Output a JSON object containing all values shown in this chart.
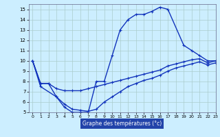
{
  "xlabel": "Graphe des températures (°c)",
  "bg_color": "#cceeff",
  "grid_color": "#aacccc",
  "line_color": "#1133bb",
  "xlim": [
    -0.5,
    23
  ],
  "ylim": [
    5,
    15.5
  ],
  "yticks": [
    5,
    6,
    7,
    8,
    9,
    10,
    11,
    12,
    13,
    14,
    15
  ],
  "xticks": [
    0,
    1,
    2,
    3,
    4,
    5,
    6,
    7,
    8,
    9,
    10,
    11,
    12,
    13,
    14,
    15,
    16,
    17,
    18,
    19,
    20,
    21,
    22,
    23
  ],
  "xlabel_bg": "#2244aa",
  "line1_x": [
    0,
    1,
    3,
    4,
    5,
    6,
    7,
    8,
    9,
    10,
    11,
    12,
    13,
    14,
    15,
    16,
    17,
    19,
    20,
    21,
    22,
    23
  ],
  "line1_y": [
    10.0,
    7.5,
    6.5,
    5.5,
    5.0,
    5.0,
    5.0,
    8.0,
    8.0,
    10.5,
    13.0,
    14.0,
    14.5,
    14.5,
    14.8,
    15.2,
    15.0,
    11.5,
    11.0,
    10.5,
    10.0,
    10.0
  ],
  "line2_x": [
    0,
    1,
    2,
    3,
    4,
    5,
    6,
    7,
    8,
    9,
    10,
    11,
    12,
    13,
    14,
    15,
    16,
    17,
    18,
    19,
    20,
    21,
    22,
    23
  ],
  "line2_y": [
    10.0,
    7.8,
    7.8,
    7.3,
    7.1,
    7.1,
    7.1,
    7.3,
    7.5,
    7.7,
    7.9,
    8.1,
    8.3,
    8.5,
    8.7,
    8.9,
    9.1,
    9.5,
    9.7,
    9.9,
    10.1,
    10.2,
    9.8,
    10.0
  ],
  "line3_x": [
    0,
    1,
    2,
    3,
    4,
    5,
    6,
    7,
    8,
    9,
    10,
    11,
    12,
    13,
    14,
    15,
    16,
    17,
    18,
    19,
    20,
    21,
    22,
    23
  ],
  "line3_y": [
    10.0,
    7.8,
    7.8,
    6.5,
    5.8,
    5.3,
    5.2,
    5.1,
    5.3,
    6.0,
    6.5,
    7.0,
    7.5,
    7.8,
    8.1,
    8.3,
    8.6,
    9.0,
    9.3,
    9.5,
    9.7,
    9.9,
    9.6,
    9.8
  ]
}
